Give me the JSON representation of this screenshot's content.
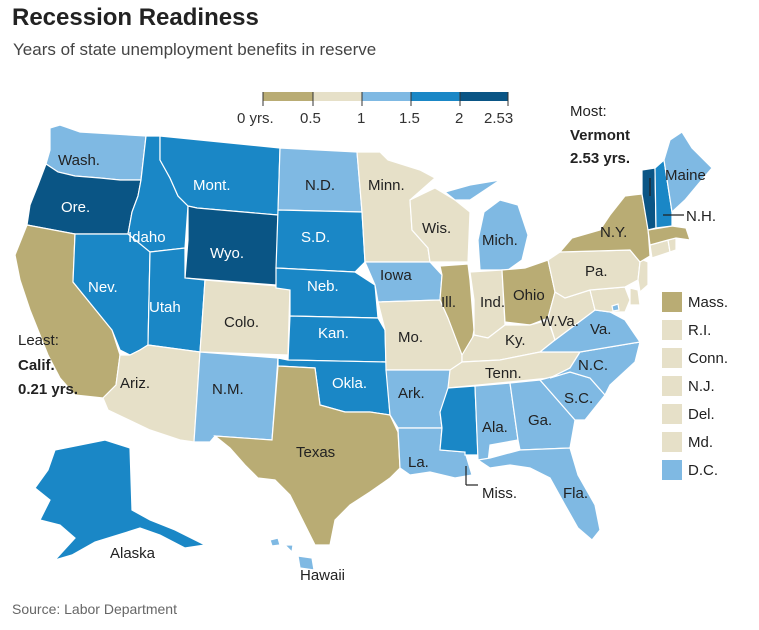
{
  "title": "Recession Readiness",
  "subtitle": "Years of state unemployment benefits in reserve",
  "source": "Source: Labor Department",
  "legend": {
    "ticks": [
      "0 yrs.",
      "0.5",
      "1",
      "1.5",
      "2",
      "2.53"
    ],
    "colors": [
      "#b9ac74",
      "#e6e0c8",
      "#7fb9e3",
      "#1a87c6",
      "#0a5585"
    ]
  },
  "annotations": {
    "most_label": "Most:",
    "most_state": "Vermont",
    "most_value": "2.53 yrs.",
    "least_label": "Least:",
    "least_state": "Calif.",
    "least_value": "0.21 yrs."
  },
  "state_labels": {
    "wash": "Wash.",
    "ore": "Ore.",
    "calif": "Calif.",
    "idaho": "Idaho",
    "nev": "Nev.",
    "mont": "Mont.",
    "wyo": "Wyo.",
    "utah": "Utah",
    "ariz": "Ariz.",
    "colo": "Colo.",
    "nm": "N.M.",
    "nd": "N.D.",
    "sd": "S.D.",
    "neb": "Neb.",
    "kan": "Kan.",
    "okla": "Okla.",
    "texas": "Texas",
    "minn": "Minn.",
    "iowa": "Iowa",
    "mo": "Mo.",
    "ark": "Ark.",
    "la": "La.",
    "wis": "Wis.",
    "ill": "Ill.",
    "mich": "Mich.",
    "ind": "Ind.",
    "ohio": "Ohio",
    "ky": "Ky.",
    "tenn": "Tenn.",
    "miss": "Miss.",
    "ala": "Ala.",
    "ga": "Ga.",
    "fla": "Fla.",
    "sc": "S.C.",
    "nc": "N.C.",
    "va": "Va.",
    "wva": "W.Va.",
    "pa": "Pa.",
    "ny": "N.Y.",
    "maine": "Maine",
    "nh": "N.H.",
    "alaska": "Alaska",
    "hawaii": "Hawaii"
  },
  "small_states_legend": [
    {
      "label": "Mass.",
      "color": "#b9ac74"
    },
    {
      "label": "R.I.",
      "color": "#e6e0c8"
    },
    {
      "label": "Conn.",
      "color": "#e6e0c8"
    },
    {
      "label": "N.J.",
      "color": "#e6e0c8"
    },
    {
      "label": "Del.",
      "color": "#e6e0c8"
    },
    {
      "label": "Md.",
      "color": "#e6e0c8"
    },
    {
      "label": "D.C.",
      "color": "#7fb9e3"
    }
  ]
}
